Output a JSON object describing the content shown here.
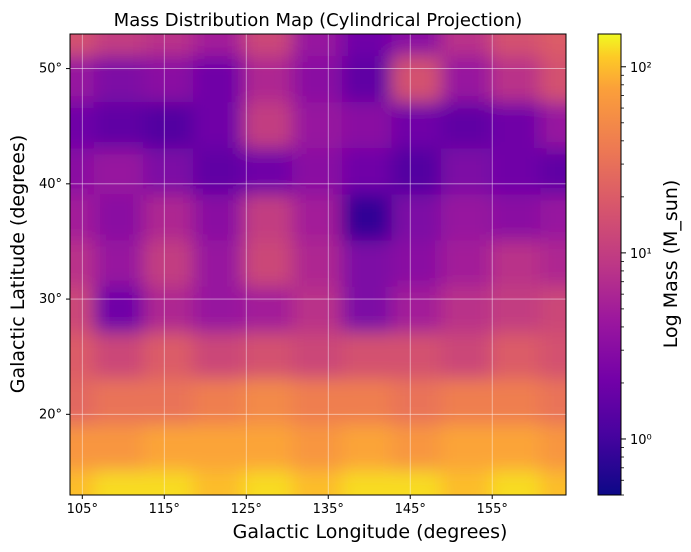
{
  "chart_data": {
    "type": "heatmap",
    "title": "Mass Distribution Map (Cylindrical Projection)",
    "xlabel": "Galactic Longitude (degrees)",
    "ylabel": "Galactic Latitude (degrees)",
    "xlim": [
      103.5,
      164
    ],
    "ylim": [
      13,
      53
    ],
    "x_ticks": [
      105,
      115,
      125,
      135,
      145,
      155
    ],
    "x_tick_labels": [
      "105°",
      "115°",
      "125°",
      "135°",
      "145°",
      "155°"
    ],
    "y_ticks": [
      20,
      30,
      40,
      50
    ],
    "y_tick_labels": [
      "20°",
      "30°",
      "40°",
      "50°"
    ],
    "grid": true,
    "colormap": "plasma",
    "colorbar": {
      "label": "Log Mass (M_sun)",
      "scale": "log",
      "range": [
        0.5,
        150
      ],
      "ticks": [
        1,
        10,
        100
      ],
      "tick_labels": [
        "10⁰",
        "10¹",
        "10²"
      ]
    },
    "log10_mass_grid": {
      "longitudes": [
        103.5,
        109.55,
        115.6,
        121.65,
        127.7,
        133.75,
        139.8,
        145.85,
        151.9,
        157.95,
        164
      ],
      "latitudes": [
        53,
        49,
        45,
        41,
        37,
        33,
        29,
        25,
        21,
        17,
        13
      ],
      "rows": [
        [
          1.2,
          1.0,
          0.9,
          0.7,
          1.1,
          0.6,
          0.3,
          0.5,
          0.9,
          1.2,
          1.3
        ],
        [
          0.6,
          0.4,
          0.5,
          0.3,
          0.8,
          0.5,
          0.2,
          1.2,
          0.6,
          0.9,
          1.2
        ],
        [
          0.3,
          0.2,
          0.1,
          0.3,
          1.0,
          0.6,
          0.5,
          0.3,
          0.2,
          0.3,
          0.6
        ],
        [
          0.5,
          0.6,
          0.4,
          0.2,
          0.3,
          0.5,
          0.3,
          0.1,
          0.4,
          0.3,
          0.2
        ],
        [
          0.7,
          0.5,
          0.8,
          0.5,
          1.0,
          0.7,
          -0.1,
          0.4,
          0.6,
          0.5,
          0.6
        ],
        [
          0.9,
          0.6,
          1.0,
          0.6,
          1.1,
          0.8,
          0.4,
          0.5,
          0.7,
          0.9,
          0.8
        ],
        [
          1.1,
          0.3,
          0.8,
          0.6,
          0.7,
          0.9,
          0.4,
          0.7,
          0.9,
          1.0,
          1.1
        ],
        [
          1.3,
          1.1,
          1.3,
          1.1,
          1.2,
          1.1,
          1.2,
          1.2,
          1.1,
          1.3,
          1.2
        ],
        [
          1.4,
          1.5,
          1.5,
          1.6,
          1.7,
          1.6,
          1.6,
          1.5,
          1.6,
          1.6,
          1.5
        ],
        [
          1.8,
          1.8,
          1.9,
          1.9,
          1.9,
          1.8,
          1.9,
          1.8,
          1.9,
          1.9,
          1.8
        ],
        [
          2.0,
          2.1,
          2.1,
          2.0,
          2.1,
          2.0,
          2.1,
          2.1,
          2.0,
          2.1,
          2.0
        ]
      ]
    }
  }
}
